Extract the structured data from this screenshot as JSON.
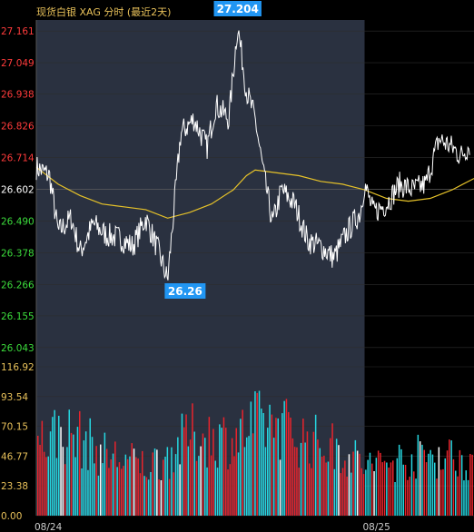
{
  "header": {
    "title": "现货白银 XAG 分时 (最近2天)"
  },
  "colors": {
    "background": "#000000",
    "history_panel": "#2a3140",
    "price_line": "#ffffff",
    "avg_line": "#e6c229",
    "up": "#e8242c",
    "down": "#26d6e0",
    "neutral": "#ffffff",
    "grid": "#2c2c2c",
    "callout_bg": "#2196f3"
  },
  "chart_data": [
    {
      "type": "line",
      "name": "price-panel",
      "y_ticks": [
        "27.161",
        "27.049",
        "26.938",
        "26.826",
        "26.714",
        "26.602",
        "26.490",
        "26.378",
        "26.266",
        "26.155",
        "26.043"
      ],
      "y_tick_values": [
        27.161,
        27.049,
        26.938,
        26.826,
        26.714,
        26.602,
        26.49,
        26.378,
        26.266,
        26.155,
        26.043
      ],
      "reference_price": 26.602,
      "ylim": [
        26.02,
        27.2
      ],
      "annotations": {
        "high": "27.204",
        "low": "26.26"
      },
      "x_ticks": [
        "08/24",
        "08/25"
      ],
      "sessions": [
        {
          "label": "08/24",
          "start": 0,
          "end": 0.75
        },
        {
          "label": "08/25",
          "start": 0.75,
          "end": 1.0
        }
      ],
      "series": [
        {
          "key": "price",
          "x": [
            0.0,
            0.03,
            0.05,
            0.08,
            0.1,
            0.13,
            0.16,
            0.19,
            0.22,
            0.25,
            0.28,
            0.3,
            0.33,
            0.36,
            0.39,
            0.41,
            0.44,
            0.46,
            0.48,
            0.5,
            0.52,
            0.54,
            0.56,
            0.59,
            0.62,
            0.65,
            0.68,
            0.71,
            0.74,
            0.75,
            0.77,
            0.8,
            0.83,
            0.86,
            0.89,
            0.92,
            0.95,
            0.97,
            0.99
          ],
          "y": [
            26.68,
            26.65,
            26.45,
            26.5,
            26.38,
            26.48,
            26.44,
            26.43,
            26.4,
            26.5,
            26.38,
            26.28,
            26.8,
            26.85,
            26.75,
            26.9,
            26.85,
            27.18,
            26.95,
            26.85,
            26.65,
            26.48,
            26.6,
            26.55,
            26.42,
            26.4,
            26.36,
            26.45,
            26.52,
            26.62,
            26.52,
            26.55,
            26.62,
            26.6,
            26.62,
            26.78,
            26.75,
            26.72,
            26.76
          ]
        },
        {
          "key": "average",
          "x": [
            0.0,
            0.05,
            0.1,
            0.15,
            0.2,
            0.25,
            0.3,
            0.35,
            0.4,
            0.45,
            0.48,
            0.5,
            0.55,
            0.6,
            0.65,
            0.7,
            0.75,
            0.8,
            0.85,
            0.9,
            0.95,
            1.0
          ],
          "y": [
            26.68,
            26.62,
            26.58,
            26.55,
            26.54,
            26.53,
            26.5,
            26.52,
            26.55,
            26.6,
            26.65,
            26.67,
            26.66,
            26.65,
            26.63,
            26.62,
            26.6,
            26.57,
            26.56,
            26.57,
            26.6,
            26.64
          ]
        }
      ]
    },
    {
      "type": "bar",
      "name": "volume-panel",
      "y_ticks": [
        "116.92",
        "93.54",
        "70.15",
        "46.77",
        "23.38",
        "0.00"
      ],
      "y_tick_values": [
        116.92,
        93.54,
        70.15,
        46.77,
        23.38,
        0.0
      ],
      "ylim": [
        0,
        116.92
      ],
      "volume_envelope": {
        "x": [
          0.0,
          0.05,
          0.1,
          0.15,
          0.2,
          0.25,
          0.3,
          0.35,
          0.4,
          0.45,
          0.5,
          0.55,
          0.6,
          0.65,
          0.7,
          0.75,
          0.8,
          0.85,
          0.9,
          0.95,
          1.0
        ],
        "y": [
          75,
          88,
          80,
          65,
          58,
          52,
          62,
          85,
          82,
          80,
          95,
          98,
          82,
          75,
          68,
          52,
          55,
          60,
          64,
          62,
          58
        ]
      }
    }
  ]
}
